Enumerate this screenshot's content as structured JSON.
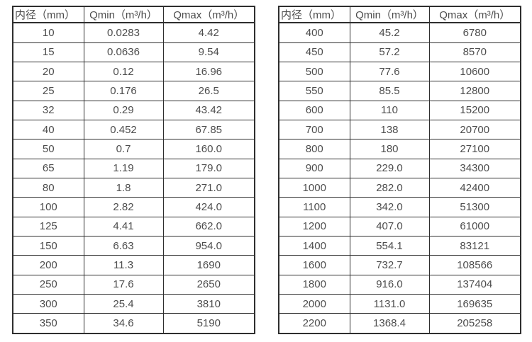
{
  "colors": {
    "background": "#ffffff",
    "border": "#2e2e2e",
    "text": "#4d4d4d"
  },
  "tables": [
    {
      "name": "flow-range-table-small-diameters",
      "headers": [
        "内径（mm）",
        "Qmin（m³/h）",
        "Qmax（m³/h）"
      ],
      "rows": [
        [
          "10",
          "0.0283",
          "4.42"
        ],
        [
          "15",
          "0.0636",
          "9.54"
        ],
        [
          "20",
          "0.12",
          "16.96"
        ],
        [
          "25",
          "0.176",
          "26.5"
        ],
        [
          "32",
          "0.29",
          "43.42"
        ],
        [
          "40",
          "0.452",
          "67.85"
        ],
        [
          "50",
          "0.7",
          "160.0"
        ],
        [
          "65",
          "1.19",
          "179.0"
        ],
        [
          "80",
          "1.8",
          "271.0"
        ],
        [
          "100",
          "2.82",
          "424.0"
        ],
        [
          "125",
          "4.41",
          "662.0"
        ],
        [
          "150",
          "6.63",
          "954.0"
        ],
        [
          "200",
          "11.3",
          "1690"
        ],
        [
          "250",
          "17.6",
          "2650"
        ],
        [
          "300",
          "25.4",
          "3810"
        ],
        [
          "350",
          "34.6",
          "5190"
        ]
      ]
    },
    {
      "name": "flow-range-table-large-diameters",
      "headers": [
        "内径（mm）",
        "Qmin（m³/h）",
        "Qmax（m³/h）"
      ],
      "rows": [
        [
          "400",
          "45.2",
          "6780"
        ],
        [
          "450",
          "57.2",
          "8570"
        ],
        [
          "500",
          "77.6",
          "10600"
        ],
        [
          "550",
          "85.5",
          "12800"
        ],
        [
          "600",
          "110",
          "15200"
        ],
        [
          "700",
          "138",
          "20700"
        ],
        [
          "800",
          "180",
          "27100"
        ],
        [
          "900",
          "229.0",
          "34300"
        ],
        [
          "1000",
          "282.0",
          "42400"
        ],
        [
          "1100",
          "342.0",
          "51300"
        ],
        [
          "1200",
          "407.0",
          "61000"
        ],
        [
          "1400",
          "554.1",
          "83121"
        ],
        [
          "1600",
          "732.7",
          "108566"
        ],
        [
          "1800",
          "916.0",
          "137404"
        ],
        [
          "2000",
          "1131.0",
          "169635"
        ],
        [
          "2200",
          "1368.4",
          "205258"
        ]
      ]
    }
  ]
}
